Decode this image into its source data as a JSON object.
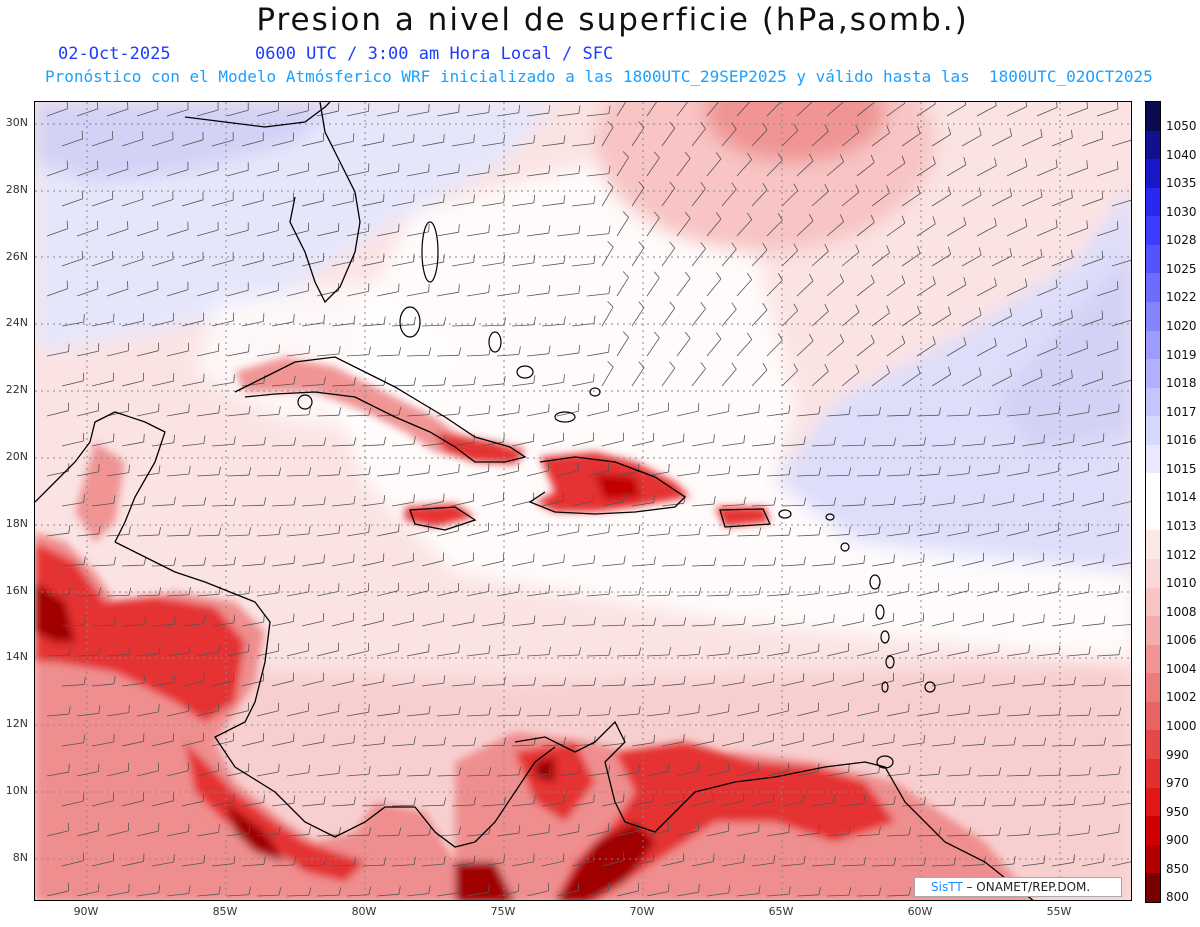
{
  "header": {
    "title": "Presion a nivel de superficie (hPa,somb.)",
    "date": "02-Oct-2025",
    "valid_time": "0600 UTC / 3:00 am Hora Local / SFC",
    "forecast_note": "Pronóstico con el Modelo Atmósferico WRF inicializado a las 1800UTC_29SEP2025 y válido hasta las  1800UTC_02OCT2025"
  },
  "map": {
    "lat_labels": [
      "30N",
      "28N",
      "26N",
      "24N",
      "22N",
      "20N",
      "18N",
      "16N",
      "14N",
      "12N",
      "10N",
      "8N"
    ],
    "lon_labels": [
      "90W",
      "85W",
      "80W",
      "75W",
      "70W",
      "65W",
      "60W",
      "55W"
    ]
  },
  "colorbar": {
    "levels": [
      "1050",
      "1040",
      "1035",
      "1030",
      "1028",
      "1025",
      "1022",
      "1020",
      "1019",
      "1018",
      "1017",
      "1016",
      "1015",
      "1014",
      "1013",
      "1012",
      "1010",
      "1008",
      "1006",
      "1004",
      "1002",
      "1000",
      "990",
      "970",
      "950",
      "900",
      "850",
      "800"
    ],
    "colors": [
      "#0a0a50",
      "#101090",
      "#1818c8",
      "#2828f0",
      "#3c3cff",
      "#5454ff",
      "#6c6cff",
      "#8484ff",
      "#9c9cff",
      "#b0b0ff",
      "#c4c4ff",
      "#d8d8ff",
      "#e8e8ff",
      "#ffffff",
      "#ffffff",
      "#fde8e8",
      "#fbd8d8",
      "#f8c4c4",
      "#f4acac",
      "#f09494",
      "#ec7c7c",
      "#e86464",
      "#e44848",
      "#e03030",
      "#e01818",
      "#d00000",
      "#b00000",
      "#7a0000"
    ]
  },
  "credit": {
    "brand": "SisTT",
    "text": " – ONAMET/REP.DOM."
  }
}
